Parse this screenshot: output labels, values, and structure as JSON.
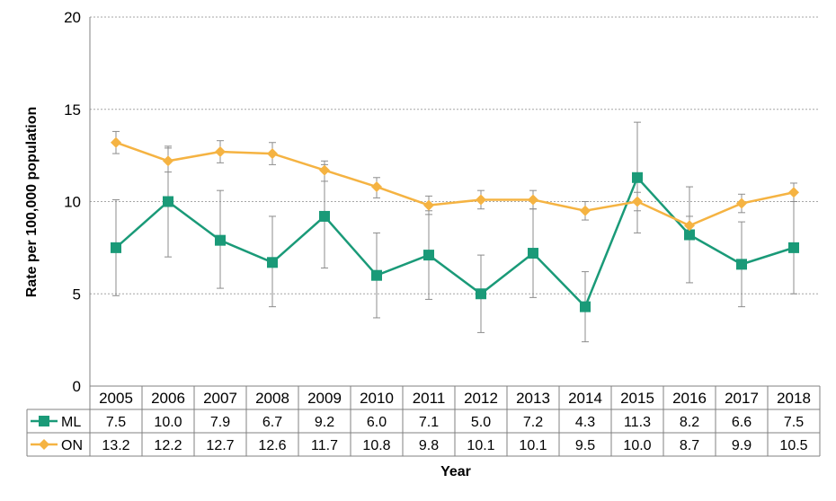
{
  "chart_data": {
    "type": "line",
    "xlabel": "Year",
    "ylabel": "Rate per 100,000 population",
    "ylim": [
      0,
      20
    ],
    "yticks": [
      0,
      5,
      10,
      15,
      20
    ],
    "grid": true,
    "legend": "data-table",
    "categories": [
      "2005",
      "2006",
      "2007",
      "2008",
      "2009",
      "2010",
      "2011",
      "2012",
      "2013",
      "2014",
      "2015",
      "2016",
      "2017",
      "2018"
    ],
    "series": [
      {
        "name": "ML",
        "color": "#1a9a78",
        "marker": "square",
        "values": [
          7.5,
          10.0,
          7.9,
          6.7,
          9.2,
          6.0,
          7.1,
          5.0,
          7.2,
          4.3,
          11.3,
          8.2,
          6.6,
          7.5
        ],
        "labels": [
          "7.5",
          "10.0",
          "7.9",
          "6.7",
          "9.2",
          "6.0",
          "7.1",
          "5.0",
          "7.2",
          "4.3",
          "11.3",
          "8.2",
          "6.6",
          "7.5"
        ],
        "lower": [
          4.9,
          7.0,
          5.3,
          4.3,
          6.4,
          3.7,
          4.7,
          2.9,
          4.8,
          2.4,
          8.3,
          5.6,
          4.3,
          5.0
        ],
        "upper": [
          10.1,
          13.0,
          10.6,
          9.2,
          12.0,
          8.3,
          9.5,
          7.1,
          9.6,
          6.2,
          14.3,
          10.8,
          8.9,
          10.0
        ]
      },
      {
        "name": "ON",
        "color": "#f5b342",
        "marker": "diamond",
        "values": [
          13.2,
          12.2,
          12.7,
          12.6,
          11.7,
          10.8,
          9.8,
          10.1,
          10.1,
          9.5,
          10.0,
          8.7,
          9.9,
          10.5
        ],
        "labels": [
          "13.2",
          "12.2",
          "12.7",
          "12.6",
          "11.7",
          "10.8",
          "9.8",
          "10.1",
          "10.1",
          "9.5",
          "10.0",
          "8.7",
          "9.9",
          "10.5"
        ],
        "lower": [
          12.6,
          11.6,
          12.1,
          12.0,
          11.1,
          10.2,
          9.3,
          9.6,
          9.6,
          9.0,
          9.5,
          8.2,
          9.4,
          10.0
        ],
        "upper": [
          13.8,
          12.9,
          13.3,
          13.2,
          12.2,
          11.3,
          10.3,
          10.6,
          10.6,
          10.0,
          10.5,
          9.2,
          10.4,
          11.0
        ]
      }
    ]
  }
}
